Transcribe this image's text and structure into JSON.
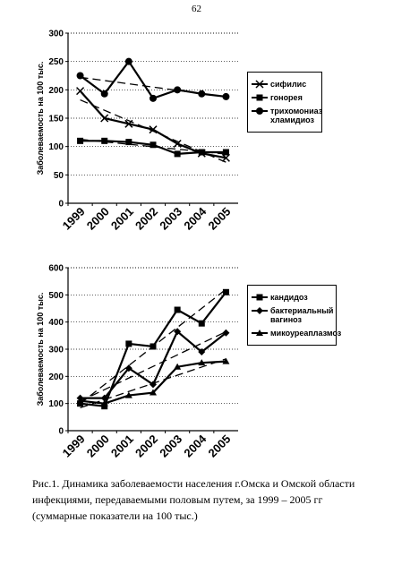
{
  "page_number": "62",
  "chart_data": [
    {
      "type": "line",
      "y_label": "Заболеваемость на 100 тыс.",
      "categories": [
        "1999",
        "2000",
        "2001",
        "2002",
        "2003",
        "2004",
        "2005"
      ],
      "ylim": [
        0,
        300
      ],
      "yticks": [
        0,
        50,
        100,
        150,
        200,
        250,
        300
      ],
      "grid": true,
      "trendlines": true,
      "legend": "right",
      "series": [
        {
          "name": "сифилис",
          "color": "#000000",
          "marker": "cross",
          "values": [
            198,
            150,
            140,
            130,
            105,
            88,
            80
          ]
        },
        {
          "name": "гонорея",
          "color": "#000000",
          "marker": "square",
          "values": [
            110,
            110,
            108,
            103,
            87,
            90,
            90
          ]
        },
        {
          "name": "трихомониаз хламидиоз",
          "color": "#000000",
          "marker": "circle",
          "values": [
            225,
            193,
            250,
            185,
            200,
            193,
            188
          ]
        }
      ]
    },
    {
      "type": "line",
      "y_label": "Заболеваемость на 100 тыс.",
      "categories": [
        "1999",
        "2000",
        "2001",
        "2002",
        "2003",
        "2004",
        "2005"
      ],
      "ylim": [
        0,
        600
      ],
      "yticks": [
        0,
        100,
        200,
        300,
        400,
        500,
        600
      ],
      "grid": true,
      "trendlines": true,
      "legend": "right",
      "series": [
        {
          "name": "кандидоз",
          "color": "#000000",
          "marker": "square",
          "values": [
            100,
            90,
            320,
            310,
            445,
            395,
            510
          ]
        },
        {
          "name": "бактериальный вагиноз",
          "color": "#000000",
          "marker": "diamond",
          "values": [
            120,
            120,
            230,
            170,
            365,
            290,
            360
          ]
        },
        {
          "name": "микоуреаплазмоз",
          "color": "#000000",
          "marker": "triangle",
          "values": [
            110,
            100,
            130,
            140,
            235,
            250,
            255
          ]
        }
      ]
    }
  ],
  "caption": "Рис.1. Динамика заболеваемости населения г.Омска и Омской области инфекциями, передаваемыми половым путем, за 1999 – 2005 гг (суммарные показатели на 100 тыс.)"
}
